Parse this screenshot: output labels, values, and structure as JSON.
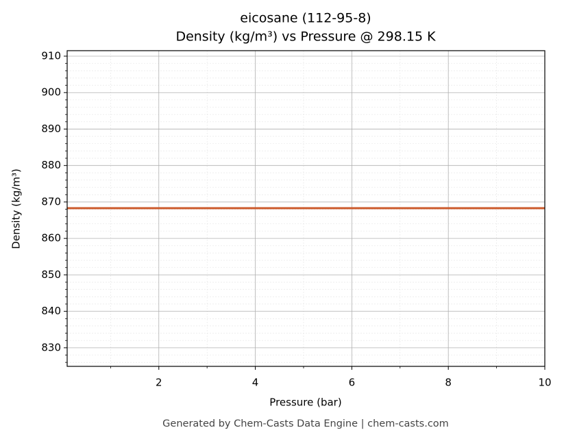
{
  "chart_data": {
    "type": "line",
    "title": "eicosane (112-95-8)",
    "subtitle": "Density (kg/m³) vs Pressure @ 298.15 K",
    "x_label": "Pressure (bar)",
    "y_label": "Density (kg/m³)",
    "footer": "Generated by Chem-Casts Data Engine | chem-casts.com",
    "x": [
      0.1,
      1,
      2,
      3,
      4,
      5,
      6,
      7,
      8,
      9,
      10
    ],
    "series": [
      {
        "name": "eicosane",
        "color": "#cc5a2b",
        "values": [
          868.3,
          868.3,
          868.3,
          868.3,
          868.3,
          868.3,
          868.3,
          868.3,
          868.3,
          868.3,
          868.3
        ]
      }
    ],
    "xlim": [
      0.1,
      10
    ],
    "ylim": [
      824.9,
      911.5
    ],
    "xticks": [
      2,
      4,
      6,
      8,
      10
    ],
    "yticks": [
      830,
      840,
      850,
      860,
      870,
      880,
      890,
      900,
      910
    ],
    "xminorticks": [
      1,
      3,
      5,
      7,
      9
    ],
    "yminorticks": [
      826,
      828,
      832,
      834,
      836,
      838,
      842,
      844,
      846,
      848,
      852,
      854,
      856,
      858,
      862,
      864,
      866,
      868,
      872,
      874,
      876,
      878,
      882,
      884,
      886,
      888,
      892,
      894,
      896,
      898,
      902,
      904,
      906,
      908
    ],
    "grid": true
  }
}
